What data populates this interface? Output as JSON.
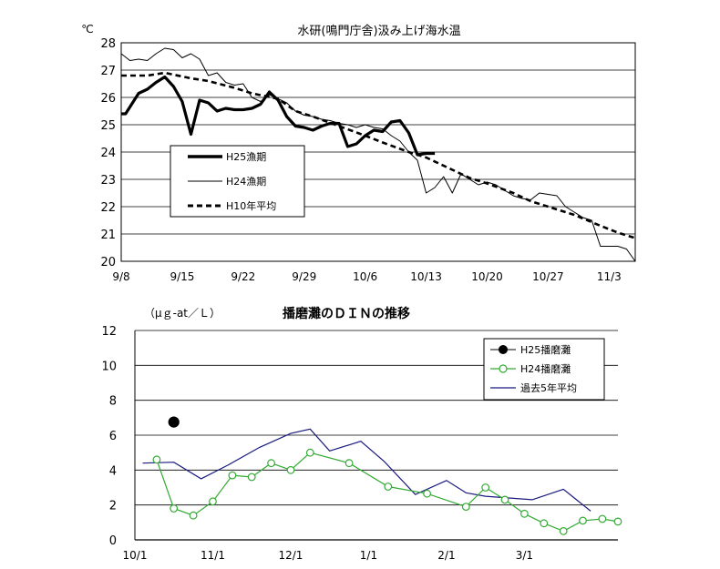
{
  "chart_data": [
    {
      "type": "line",
      "title": "水研(鳴門庁舎)汲み上げ海水温",
      "ylabel": "℃",
      "xlabel": "",
      "ylim": [
        20,
        28
      ],
      "y_ticks": [
        "20",
        "21",
        "22",
        "23",
        "24",
        "25",
        "26",
        "27",
        "28"
      ],
      "x_tick_labels": [
        "9/8",
        "9/15",
        "9/22",
        "9/29",
        "10/6",
        "10/13",
        "10/20",
        "10/27",
        "11/3"
      ],
      "x_unit": "day index from 9/8",
      "xlim": [
        0,
        59
      ],
      "grid": true,
      "legend_position": "center-left",
      "series": [
        {
          "name": "H25漁期",
          "color": "#000000",
          "style": "thick-solid",
          "x": [
            0,
            0.5,
            2,
            3,
            4,
            5,
            6,
            7,
            8,
            9,
            10,
            11,
            12,
            13,
            14,
            15,
            16,
            17,
            18,
            19,
            20,
            21,
            22,
            23,
            24,
            25,
            26,
            27,
            28,
            29,
            30,
            31,
            32,
            33,
            34,
            35,
            36
          ],
          "y": [
            25.4,
            25.4,
            26.15,
            26.3,
            26.55,
            26.75,
            26.4,
            25.85,
            24.65,
            25.9,
            25.8,
            25.5,
            25.6,
            25.55,
            25.55,
            25.6,
            25.75,
            26.2,
            25.9,
            25.3,
            24.95,
            24.9,
            24.8,
            24.95,
            25.05,
            25.05,
            24.2,
            24.3,
            24.6,
            24.8,
            24.75,
            25.1,
            25.15,
            24.7,
            23.9,
            23.95,
            23.95
          ]
        },
        {
          "name": "H24漁期",
          "color": "#000000",
          "style": "thin-solid",
          "x": [
            0,
            1,
            2,
            3,
            4,
            5,
            6,
            7,
            8,
            9,
            10,
            11,
            12,
            13,
            14,
            15,
            16,
            17,
            18,
            19,
            20,
            21,
            22,
            23,
            24,
            25,
            26,
            27,
            28,
            29,
            30,
            31,
            32,
            33,
            34,
            35,
            36,
            37,
            38,
            39,
            40,
            41,
            42,
            43,
            44,
            45,
            46,
            47,
            48,
            49,
            50,
            51,
            52,
            53,
            54,
            55,
            56,
            57,
            58,
            59
          ],
          "y": [
            27.6,
            27.35,
            27.4,
            27.35,
            27.6,
            27.8,
            27.75,
            27.45,
            27.6,
            27.4,
            26.8,
            26.9,
            26.55,
            26.45,
            26.5,
            26.0,
            25.85,
            26.1,
            25.95,
            25.8,
            25.5,
            25.35,
            25.3,
            25.2,
            25.15,
            25.05,
            25.0,
            24.9,
            25.0,
            24.9,
            24.85,
            24.6,
            24.4,
            24.0,
            23.7,
            22.5,
            22.7,
            23.1,
            22.5,
            23.2,
            23.0,
            22.8,
            22.9,
            22.8,
            22.6,
            22.4,
            22.3,
            22.25,
            22.5,
            22.45,
            22.4,
            22.0,
            21.8,
            21.6,
            21.5,
            20.55,
            20.55,
            20.55,
            20.45,
            20.0
          ]
        },
        {
          "name": "H10年平均",
          "color": "#000000",
          "style": "dashed",
          "x": [
            0,
            3,
            5,
            8,
            10,
            13,
            15,
            18,
            20,
            22,
            25,
            28,
            30,
            33,
            35,
            38,
            40,
            42,
            45,
            47,
            50,
            52,
            55,
            57,
            59
          ],
          "y": [
            26.8,
            26.8,
            26.9,
            26.7,
            26.6,
            26.35,
            26.15,
            25.95,
            25.5,
            25.3,
            24.95,
            24.6,
            24.35,
            24.0,
            23.8,
            23.35,
            23.05,
            22.85,
            22.5,
            22.2,
            21.9,
            21.7,
            21.3,
            21.05,
            20.85
          ]
        }
      ]
    },
    {
      "type": "line",
      "title": "播磨灘のＤＩＮの推移",
      "ylabel": "（μｇ-at／Ｌ）",
      "xlabel": "",
      "ylim": [
        0,
        12
      ],
      "y_ticks": [
        "0",
        "2",
        "4",
        "6",
        "8",
        "10",
        "12"
      ],
      "x_tick_labels": [
        "10/1",
        "11/1",
        "12/1",
        "1/1",
        "2/1",
        "3/1"
      ],
      "x_unit": "month index from 10/1",
      "xlim": [
        0,
        6.2
      ],
      "grid": true,
      "legend_position": "top-right",
      "series": [
        {
          "name": "H25播磨灘",
          "color": "#000000",
          "marker": "filled-circle",
          "x": [
            0.5
          ],
          "y": [
            6.75
          ]
        },
        {
          "name": "H24播磨灘",
          "color": "#33aa33",
          "marker": "open-circle",
          "x": [
            0.28,
            0.5,
            0.75,
            1.0,
            1.25,
            1.5,
            1.75,
            2.0,
            2.25,
            2.75,
            3.25,
            3.75,
            4.25,
            4.5,
            4.75,
            5.0,
            5.25,
            5.5,
            5.75,
            6.0,
            6.2
          ],
          "y": [
            4.6,
            1.8,
            1.4,
            2.2,
            3.7,
            3.6,
            4.4,
            4.0,
            5.0,
            4.4,
            3.05,
            2.65,
            1.9,
            3.0,
            2.3,
            1.5,
            0.95,
            0.5,
            1.1,
            1.2,
            1.05
          ]
        },
        {
          "name": "過去5年平均",
          "color": "#1a1a80",
          "marker": "none",
          "x": [
            0.1,
            0.5,
            0.85,
            1.2,
            1.6,
            2.0,
            2.25,
            2.5,
            2.9,
            3.2,
            3.6,
            4.0,
            4.25,
            4.5,
            4.8,
            5.1,
            5.5,
            5.85
          ],
          "y": [
            4.4,
            4.45,
            3.5,
            4.3,
            5.3,
            6.1,
            6.35,
            5.1,
            5.65,
            4.5,
            2.6,
            3.4,
            2.7,
            2.5,
            2.4,
            2.3,
            2.9,
            1.65
          ]
        }
      ]
    }
  ]
}
